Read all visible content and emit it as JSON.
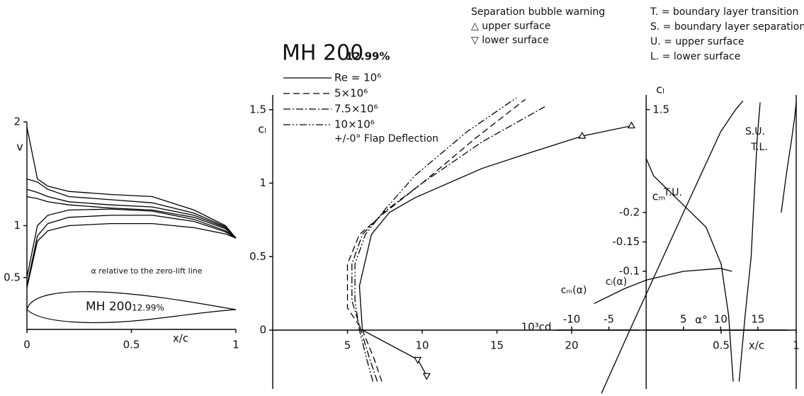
{
  "title": {
    "name": "MH 200",
    "thickness": "12.99%"
  },
  "legend_notes": {
    "separation_title": "Separation bubble warning",
    "upper": "△ upper surface",
    "lower": "▽ lower surface",
    "key": [
      "T. = boundary layer transition",
      "S. = boundary layer separation",
      "U. = upper surface",
      "L. = lower surface"
    ]
  },
  "chart_data": [
    {
      "type": "line",
      "x_label": "x/c",
      "y_label": "v",
      "annotation": "α relative to the zero-lift line",
      "airfoil_name": "MH 200",
      "airfoil_thickness": "12.99%",
      "x": [
        0,
        0.05,
        0.1,
        0.2,
        0.4,
        0.6,
        0.8,
        0.95,
        1.0
      ],
      "xlim": [
        0,
        1
      ],
      "ylim": [
        0,
        2
      ],
      "xticks": [
        0,
        0.5,
        1
      ],
      "yticks": [
        0.5,
        1,
        2
      ],
      "series": [
        {
          "color": "#000000",
          "values": [
            1.95,
            1.45,
            1.38,
            1.33,
            1.3,
            1.28,
            1.15,
            1.0,
            0.88
          ]
        },
        {
          "color": "#000000",
          "values": [
            1.45,
            1.42,
            1.35,
            1.28,
            1.25,
            1.22,
            1.12,
            0.99,
            0.88
          ]
        },
        {
          "color": "#000000",
          "values": [
            1.35,
            1.32,
            1.28,
            1.23,
            1.2,
            1.18,
            1.1,
            0.98,
            0.88
          ]
        },
        {
          "color": "#000000",
          "values": [
            1.28,
            1.26,
            1.23,
            1.2,
            1.17,
            1.15,
            1.08,
            0.97,
            0.88
          ]
        },
        {
          "color": "#000000",
          "values": [
            0.5,
            1.0,
            1.1,
            1.15,
            1.16,
            1.14,
            1.06,
            0.95,
            0.88
          ]
        },
        {
          "color": "#000000",
          "values": [
            0.42,
            0.9,
            1.02,
            1.08,
            1.1,
            1.1,
            1.04,
            0.94,
            0.88
          ]
        },
        {
          "color": "#000000",
          "values": [
            0.4,
            0.85,
            0.95,
            1.0,
            1.02,
            1.02,
            0.98,
            0.92,
            0.88
          ]
        }
      ]
    },
    {
      "type": "line",
      "x_label": "10³cd",
      "y_label": "cₗ",
      "note": "+/-0° Flap Deflection",
      "xlim": [
        0,
        24.5
      ],
      "ylim": [
        -0.4,
        1.6
      ],
      "xticks": [
        5,
        10,
        15,
        20
      ],
      "yticks": [
        0,
        0.5,
        1,
        1.5
      ],
      "series": [
        {
          "name": "Re = 10⁶",
          "color": "#000000",
          "dash": "none",
          "x": [
            10.3,
            9.7,
            6.0,
            5.8,
            6.6,
            7.8,
            9.5,
            14,
            17,
            20.7,
            24.0
          ],
          "values": [
            -0.31,
            -0.2,
            0,
            0.3,
            0.65,
            0.8,
            0.9,
            1.1,
            1.2,
            1.32,
            1.39
          ]
        },
        {
          "name": "5×10⁶",
          "color": "#000000",
          "dash": "9 5",
          "x": [
            7.3,
            6.8,
            6.0,
            5.0,
            5.0,
            5.8,
            7.5,
            10,
            13.5,
            16.9
          ],
          "values": [
            -0.35,
            -0.2,
            0,
            0.15,
            0.45,
            0.65,
            0.8,
            1.0,
            1.3,
            1.57
          ]
        },
        {
          "name": "7.5×10⁶",
          "color": "#000000",
          "dash": "10 3 2 3",
          "x": [
            7.0,
            6.5,
            5.9,
            5.3,
            5.3,
            6.0,
            7.4,
            10,
            14,
            18.2
          ],
          "values": [
            -0.35,
            -0.2,
            0,
            0.2,
            0.45,
            0.65,
            0.8,
            1.0,
            1.28,
            1.52
          ]
        },
        {
          "name": "10×10⁶",
          "color": "#000000",
          "dash": "10 3 2 3 2 3",
          "x": [
            6.7,
            6.3,
            5.8,
            5.5,
            5.5,
            6.2,
            7.5,
            9.5,
            13,
            16.3
          ],
          "values": [
            -0.35,
            -0.2,
            0,
            0.2,
            0.45,
            0.65,
            0.82,
            1.05,
            1.35,
            1.58
          ]
        }
      ],
      "separation_bubbles": {
        "upper": {
          "x": [
            20.7,
            24.0
          ],
          "values": [
            1.32,
            1.39
          ]
        },
        "lower": {
          "x": [
            9.7,
            10.3
          ],
          "values": [
            -0.2,
            -0.31
          ]
        }
      }
    },
    {
      "type": "line",
      "x_label": "α°",
      "y_label": "cₗ",
      "y2_label": "cₘ",
      "xlim": [
        -12,
        19
      ],
      "ylim": [
        -0.4,
        1.6
      ],
      "y2lim": [
        0.1,
        -0.4
      ],
      "xticks": [
        -10,
        -5,
        5,
        10,
        15
      ],
      "yticks": [
        1.5
      ],
      "y2ticks": [
        -0.2,
        -0.15,
        -0.1
      ],
      "series": [
        {
          "name": "cₗ(α)",
          "color": "#000000",
          "dash": "none",
          "x": [
            -6,
            -2.2,
            5,
            10,
            12,
            13
          ],
          "values": [
            -0.43,
            0,
            0.8,
            1.35,
            1.5,
            1.56
          ]
        },
        {
          "name": "cₘ(α)",
          "color": "#000000",
          "dash": "none",
          "axis": "y2",
          "x": [
            -7,
            -3,
            0,
            5,
            10,
            11.5
          ],
          "values": [
            -0.045,
            -0.07,
            -0.085,
            -0.1,
            -0.105,
            -0.1
          ]
        }
      ]
    },
    {
      "type": "line",
      "x_label": "x/c",
      "xlim": [
        0,
        1
      ],
      "ylim": [
        -0.4,
        1.6
      ],
      "xticks": [
        0.5,
        1
      ],
      "yticks": [],
      "series": [
        {
          "name": "T.U.",
          "color": "#000000",
          "dash": "none",
          "x": [
            0.0,
            0.05,
            0.2,
            0.4,
            0.5,
            0.55,
            0.58
          ],
          "values": [
            1.17,
            1.05,
            0.9,
            0.7,
            0.45,
            0.1,
            -0.35
          ]
        },
        {
          "name": "T.L.",
          "color": "#000000",
          "dash": "none",
          "x": [
            0.62,
            0.66,
            0.7,
            0.72,
            0.74,
            0.76
          ],
          "values": [
            -0.35,
            0.1,
            0.5,
            0.9,
            1.3,
            1.55
          ]
        },
        {
          "name": "S.U.",
          "color": "#000000",
          "dash": "none",
          "x": [
            0.9,
            0.94,
            0.97,
            0.99,
            1.0
          ],
          "values": [
            0.8,
            1.1,
            1.3,
            1.45,
            1.55
          ]
        }
      ]
    }
  ]
}
